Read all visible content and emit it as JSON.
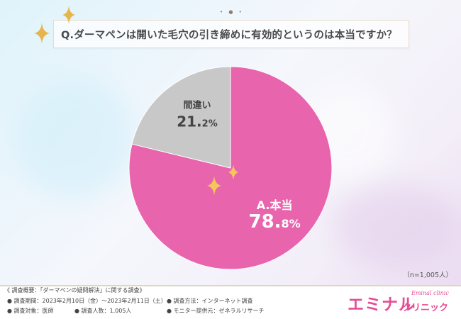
{
  "question": "Q.ダーマペンは開いた毛穴の引き締めに有効的というのは本当ですか？",
  "sample_note": "（n=1,005人）",
  "colors": {
    "yes": "#e864ad",
    "no": "#c8c8c8",
    "label_text": "#ffffff",
    "no_label_text": "#444444",
    "accent": "#e54e95"
  },
  "chart_data": {
    "type": "pie",
    "title": "Q.ダーマペンは開いた毛穴の引き締めに有効的というのは本当ですか？",
    "series": [
      {
        "name": "A.本当",
        "value": 78.8,
        "label_name": "A.本当",
        "label_pct_int": "78.",
        "label_pct_dec": "8",
        "label_pct_unit": "%"
      },
      {
        "name": "間違い",
        "value": 21.2,
        "label_name": "間違い",
        "label_pct_int": "21.",
        "label_pct_dec": "2",
        "label_pct_unit": "%"
      }
    ],
    "start": "12 o'clock, clockwise"
  },
  "footer": {
    "overview": "《 調査概要：「ダーマペンの疑問解決」に関する調査》",
    "period": "● 調査期間：2023年2月10日（金）〜2023年2月11日（土）",
    "method": "● 調査方法：インターネット調査",
    "target": "● 調査対象：医師",
    "count": "● 調査人数：1,005人",
    "provider": "● モニター提供元：ゼネラルリサーチ"
  },
  "logo": {
    "main": "エミナル",
    "sub": "クリニック",
    "script": "Eminal clinic"
  }
}
